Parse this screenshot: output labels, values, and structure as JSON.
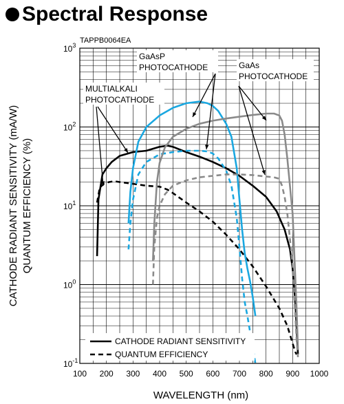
{
  "page": {
    "heading": "Spectral Response"
  },
  "chart_data": {
    "type": "line",
    "figure_code": "TAPPB0064EA",
    "xlabel": "WAVELENGTH (nm)",
    "ylabel_line1": "CATHODE RADIANT SENSITIVITY (mA/W)",
    "ylabel_line2": "QUANTUM EFFICIENCY (%)",
    "xlim": [
      100,
      1000
    ],
    "ylim": [
      0.1,
      1000
    ],
    "yscale": "log",
    "grid": true,
    "x_ticks": [
      "100",
      "200",
      "300",
      "400",
      "500",
      "600",
      "700",
      "800",
      "900",
      "1000"
    ],
    "y_ticks": [
      {
        "value": 1000,
        "base": "10",
        "exp": "3"
      },
      {
        "value": 100,
        "base": "10",
        "exp": "2"
      },
      {
        "value": 10,
        "base": "10",
        "exp": "1"
      },
      {
        "value": 1,
        "base": "10",
        "exp": "0"
      },
      {
        "value": 0.1,
        "base": "10",
        "exp": "-1"
      }
    ],
    "legend": {
      "placement": "bottom-left",
      "entries": [
        {
          "label": "CATHODE RADIANT SENSITIVITY",
          "style": "solid"
        },
        {
          "label": "QUANTUM EFFICIENCY",
          "style": "dashed"
        }
      ]
    },
    "annotations": {
      "multialkali": [
        "MULTIALKALI",
        "PHOTOCATHODE"
      ],
      "gaasp": [
        "GaAsP",
        "PHOTOCATHODE"
      ],
      "gaas": [
        "GaAs",
        "PHOTOCATHODE"
      ]
    },
    "series": [
      {
        "cathode": "multialkali",
        "quantity": "sensitivity",
        "color": "#000000",
        "x": [
          165,
          170,
          185,
          200,
          220,
          250,
          300,
          350,
          400,
          430,
          450,
          500,
          550,
          600,
          650,
          700,
          750,
          800,
          840,
          870,
          890,
          900,
          910,
          920
        ],
        "y": [
          2.3,
          12,
          25,
          30,
          36,
          43,
          48,
          50,
          56,
          58,
          56,
          48,
          42,
          36,
          30,
          24,
          18,
          13,
          8.5,
          5,
          2.8,
          1.6,
          0.6,
          0.13
        ]
      },
      {
        "cathode": "multialkali",
        "quantity": "quantum_efficiency",
        "color": "#000000",
        "x": [
          165,
          175,
          190,
          210,
          230,
          250,
          300,
          350,
          400,
          430,
          450,
          500,
          550,
          600,
          650,
          700,
          750,
          800,
          850,
          880,
          900,
          910,
          915
        ],
        "y": [
          11,
          17,
          19,
          20,
          20.5,
          20,
          19,
          18,
          17.5,
          16,
          14.5,
          11,
          8.5,
          6.3,
          4.3,
          2.8,
          1.7,
          0.95,
          0.5,
          0.3,
          0.18,
          0.14,
          0.13
        ]
      },
      {
        "cathode": "gaasp",
        "quantity": "sensitivity",
        "color": "#1aa7e0",
        "x": [
          283,
          290,
          300,
          320,
          350,
          400,
          450,
          500,
          550,
          580,
          600,
          620,
          650,
          670,
          690,
          700,
          710,
          720,
          730,
          740,
          750,
          760
        ],
        "y": [
          6,
          15,
          30,
          65,
          100,
          140,
          175,
          200,
          210,
          200,
          185,
          160,
          110,
          75,
          30,
          12,
          5,
          2.5,
          1.6,
          1.1,
          0.7,
          0.4
        ]
      },
      {
        "cathode": "gaasp",
        "quantity": "quantum_efficiency",
        "color": "#1aa7e0",
        "x": [
          283,
          290,
          300,
          320,
          350,
          400,
          450,
          500,
          550,
          580,
          600,
          620,
          650,
          670,
          690,
          700,
          710,
          720,
          730,
          740,
          750,
          760
        ],
        "y": [
          2.8,
          6,
          12,
          25,
          36,
          45,
          48,
          50,
          50,
          49,
          46,
          40,
          28,
          18,
          7,
          3,
          1.2,
          0.6,
          0.4,
          0.25,
          0.16,
          0.1
        ]
      },
      {
        "cathode": "gaas",
        "quantity": "sensitivity",
        "color": "#8a8a8a",
        "x": [
          375,
          380,
          390,
          400,
          420,
          450,
          500,
          550,
          600,
          650,
          700,
          750,
          800,
          830,
          850,
          860,
          870,
          880,
          900,
          915,
          920
        ],
        "y": [
          2,
          6,
          20,
          35,
          55,
          75,
          95,
          110,
          120,
          128,
          135,
          142,
          148,
          148,
          140,
          120,
          80,
          40,
          8,
          0.5,
          0.15
        ]
      },
      {
        "cathode": "gaas",
        "quantity": "quantum_efficiency",
        "color": "#8a8a8a",
        "x": [
          375,
          380,
          390,
          400,
          420,
          450,
          500,
          550,
          600,
          650,
          700,
          750,
          800,
          830,
          850,
          860,
          870,
          880,
          900,
          915,
          920
        ],
        "y": [
          1,
          3,
          7,
          10,
          14,
          18,
          21,
          23,
          24,
          25,
          25,
          24.5,
          23.5,
          23,
          22,
          18,
          13,
          8,
          1.8,
          0.2,
          0.12
        ]
      }
    ]
  }
}
